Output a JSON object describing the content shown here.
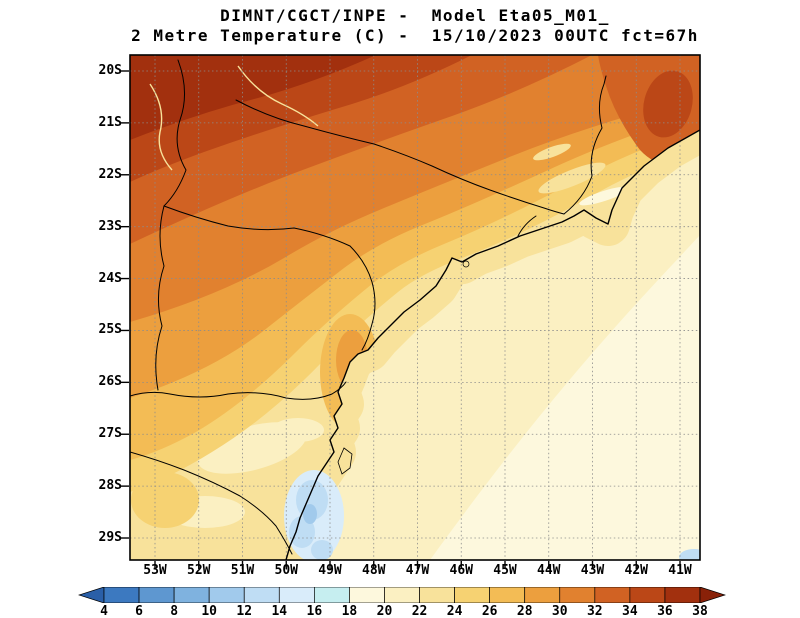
{
  "title": {
    "line1": "DIMNT/CGCT/INPE -  Model Eta05_M01_",
    "line2": "2 Metre Temperature (C) -  15/10/2023 00UTC fct=67h"
  },
  "axes": {
    "lat_labels": [
      "20S",
      "21S",
      "22S",
      "23S",
      "24S",
      "25S",
      "26S",
      "27S",
      "28S",
      "29S"
    ],
    "lon_labels": [
      "53W",
      "52W",
      "51W",
      "50W",
      "49W",
      "48W",
      "47W",
      "46W",
      "45W",
      "44W",
      "43W",
      "42W",
      "41W"
    ]
  },
  "colorbar": {
    "tick_labels": [
      "4",
      "6",
      "8",
      "10",
      "12",
      "14",
      "16",
      "18",
      "20",
      "22",
      "24",
      "26",
      "28",
      "30",
      "32",
      "34",
      "36",
      "38"
    ],
    "colors": [
      "#2a5fa8",
      "#3c79c0",
      "#5e97d0",
      "#7fb2df",
      "#a1caec",
      "#bfddf4",
      "#d9ecfa",
      "#c6eef0",
      "#fdf8dd",
      "#fbf0c2",
      "#f8e29b",
      "#f6d272",
      "#f3bc55",
      "#ec9f3e",
      "#e1812f",
      "#d16223",
      "#bb4717",
      "#a2300e",
      "#892108"
    ]
  }
}
